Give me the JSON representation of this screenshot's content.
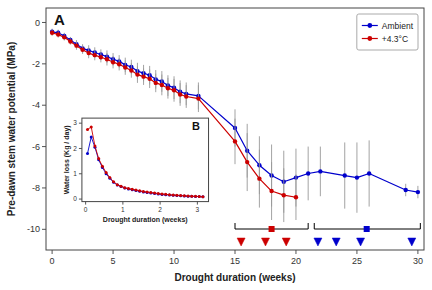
{
  "chart_data": [
    {
      "type": "line",
      "title": "A",
      "x_label": "Drought duration (weeks)",
      "y_label": "Pre-dawn stem water potential (MPa)",
      "xlim": [
        -0.5,
        30.5
      ],
      "ylim": [
        -11.0,
        0.7
      ],
      "xticks": [
        0,
        5,
        10,
        15,
        20,
        25,
        30
      ],
      "yticks": [
        0,
        -2,
        -4,
        -6,
        -8,
        -10
      ],
      "legend": "upper right",
      "marker": "circle",
      "series": [
        {
          "name": "Ambient",
          "color": "#0000cc",
          "x": [
            0,
            0.5,
            1,
            1.5,
            2,
            2.5,
            3,
            3.5,
            4,
            4.5,
            5,
            5.5,
            6,
            6.5,
            7,
            7.5,
            8,
            8.5,
            9,
            9.5,
            10,
            10.5,
            11,
            12,
            15,
            16,
            17,
            18,
            19,
            20,
            21,
            22,
            24,
            25,
            26,
            29,
            30
          ],
          "values": [
            -0.45,
            -0.5,
            -0.65,
            -0.85,
            -1.05,
            -1.25,
            -1.35,
            -1.45,
            -1.55,
            -1.65,
            -1.78,
            -1.88,
            -2.05,
            -2.15,
            -2.35,
            -2.45,
            -2.55,
            -2.75,
            -2.85,
            -3.05,
            -3.15,
            -3.35,
            -3.45,
            -3.55,
            -5.1,
            -6.2,
            -6.9,
            -7.4,
            -7.7,
            -7.5,
            -7.3,
            -7.2,
            -7.4,
            -7.5,
            -7.3,
            -8.1,
            -8.2
          ],
          "errors": [
            0.15,
            0.15,
            0.15,
            0.15,
            0.2,
            0.2,
            0.25,
            0.25,
            0.25,
            0.3,
            0.3,
            0.3,
            0.35,
            0.35,
            0.4,
            0.4,
            0.45,
            0.45,
            0.5,
            0.5,
            0.55,
            0.55,
            0.55,
            0.65,
            0.9,
            1.3,
            1.4,
            1.5,
            1.5,
            1.4,
            1.3,
            1.2,
            1.6,
            1.7,
            1.6,
            0.3,
            0.3
          ]
        },
        {
          "name": "+4.3°C",
          "color": "#cc0000",
          "x": [
            0,
            0.5,
            1,
            1.5,
            2,
            2.5,
            3,
            3.5,
            4,
            4.5,
            5,
            5.5,
            6,
            6.5,
            7,
            7.5,
            8,
            8.5,
            9,
            9.5,
            10,
            10.5,
            11,
            12,
            15,
            16,
            17,
            18,
            19,
            20
          ],
          "values": [
            -0.5,
            -0.58,
            -0.72,
            -0.92,
            -1.12,
            -1.32,
            -1.48,
            -1.58,
            -1.68,
            -1.78,
            -1.92,
            -2.02,
            -2.18,
            -2.32,
            -2.52,
            -2.62,
            -2.72,
            -2.92,
            -3.02,
            -3.18,
            -3.28,
            -3.48,
            -3.58,
            -3.68,
            -5.75,
            -6.75,
            -7.55,
            -8.15,
            -8.35,
            -8.45
          ],
          "errors": [
            0.15,
            0.15,
            0.15,
            0.15,
            0.2,
            0.2,
            0.25,
            0.25,
            0.25,
            0.3,
            0.3,
            0.3,
            0.35,
            0.35,
            0.4,
            0.4,
            0.45,
            0.45,
            0.5,
            0.5,
            0.55,
            0.55,
            0.55,
            0.65,
            1.1,
            1.4,
            1.4,
            1.4,
            1.3,
            1.1
          ]
        }
      ],
      "death_markers": [
        {
          "color": "#cc0000",
          "x": [
            15.5,
            17.5,
            19.2
          ]
        },
        {
          "color": "#0000cc",
          "x": [
            21.8,
            23.3,
            25.3,
            29.5
          ]
        }
      ],
      "brackets": [
        {
          "color": "#cc0000",
          "x1": 15.0,
          "x2": 21.0,
          "mid": 18.0
        },
        {
          "color": "#0000cc",
          "x1": 21.5,
          "x2": 30.2,
          "mid": 25.8
        }
      ]
    },
    {
      "type": "line",
      "title": "B",
      "x_label": "Drought duration (weeks)",
      "y_label": "Water loss (Kg / day)",
      "xlim": [
        -0.1,
        3.3
      ],
      "ylim": [
        -0.1,
        3.2
      ],
      "xticks": [
        0,
        1,
        2,
        3
      ],
      "yticks": [
        0,
        1,
        2,
        3
      ],
      "marker": "circle",
      "series": [
        {
          "color": "#0000cc",
          "x": [
            0.05,
            0.15,
            0.25,
            0.35,
            0.45,
            0.55,
            0.65,
            0.75,
            0.85,
            0.95,
            1.05,
            1.15,
            1.25,
            1.35,
            1.45,
            1.55,
            1.65,
            1.75,
            1.85,
            1.95,
            2.05,
            2.15,
            2.25,
            2.35,
            2.45,
            2.55,
            2.65,
            2.75,
            2.85,
            2.95,
            3.05,
            3.15
          ],
          "values": [
            1.8,
            2.45,
            2.05,
            1.55,
            1.25,
            1.0,
            0.82,
            0.66,
            0.56,
            0.5,
            0.44,
            0.4,
            0.37,
            0.34,
            0.31,
            0.28,
            0.26,
            0.24,
            0.22,
            0.2,
            0.18,
            0.17,
            0.16,
            0.15,
            0.14,
            0.13,
            0.12,
            0.11,
            0.11,
            0.1,
            0.1,
            0.09
          ]
        },
        {
          "color": "#cc0000",
          "x": [
            0.05,
            0.15,
            0.25,
            0.35,
            0.45,
            0.55,
            0.65,
            0.75,
            0.85,
            0.95,
            1.05,
            1.15,
            1.25,
            1.35,
            1.45,
            1.55,
            1.65,
            1.75,
            1.85,
            1.95,
            2.05,
            2.15,
            2.25,
            2.35,
            2.45,
            2.55,
            2.65,
            2.75,
            2.85,
            2.95,
            3.05,
            3.15
          ],
          "values": [
            2.75,
            2.85,
            2.1,
            1.6,
            1.3,
            1.05,
            0.85,
            0.68,
            0.57,
            0.51,
            0.45,
            0.42,
            0.39,
            0.36,
            0.33,
            0.3,
            0.28,
            0.26,
            0.24,
            0.22,
            0.2,
            0.19,
            0.17,
            0.16,
            0.15,
            0.14,
            0.13,
            0.12,
            0.11,
            0.11,
            0.1,
            0.09
          ]
        }
      ]
    }
  ]
}
